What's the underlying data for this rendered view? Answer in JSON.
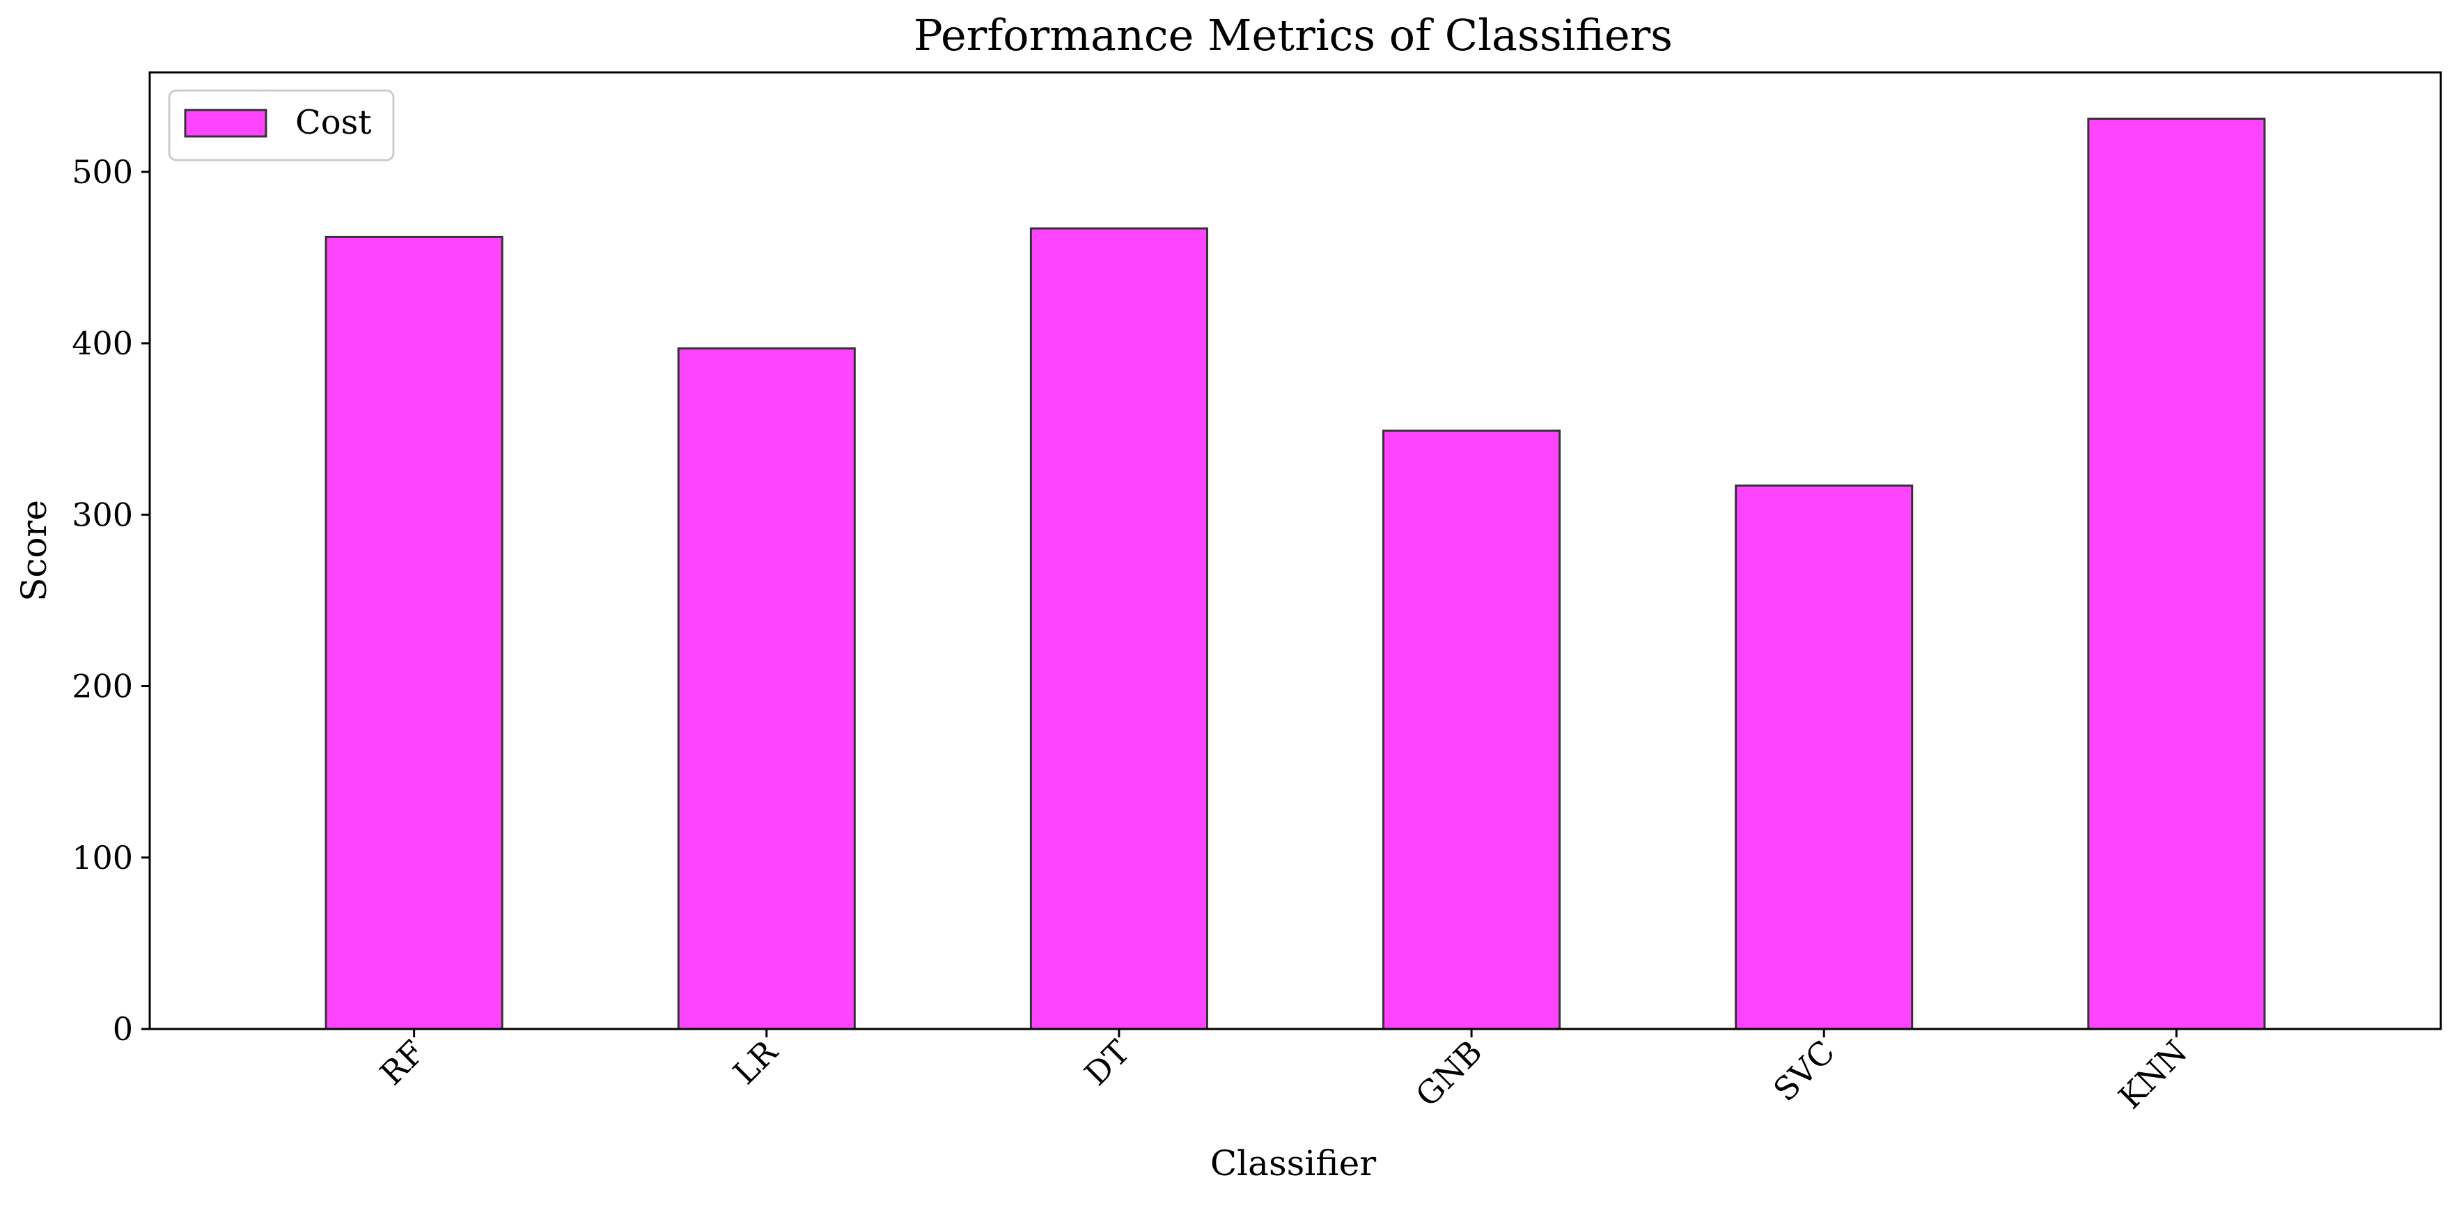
{
  "chart_data": {
    "type": "bar",
    "title": "Performance Metrics of Classifiers",
    "xlabel": "Classifier",
    "ylabel": "Score",
    "categories": [
      "RF",
      "LR",
      "DT",
      "GNB",
      "SVC",
      "KNN"
    ],
    "series": [
      {
        "name": "Cost",
        "values": [
          462,
          397,
          467,
          349,
          317,
          531
        ]
      }
    ],
    "ylim": [
      0,
      558
    ],
    "yticks": [
      0,
      100,
      200,
      300,
      400,
      500
    ],
    "colors": {
      "bar_fill": "#ff44ff",
      "bar_edge": "#333333",
      "axis": "#000000"
    },
    "grid": false,
    "legend_position": "top-left",
    "xtick_rotation_deg": 45
  }
}
